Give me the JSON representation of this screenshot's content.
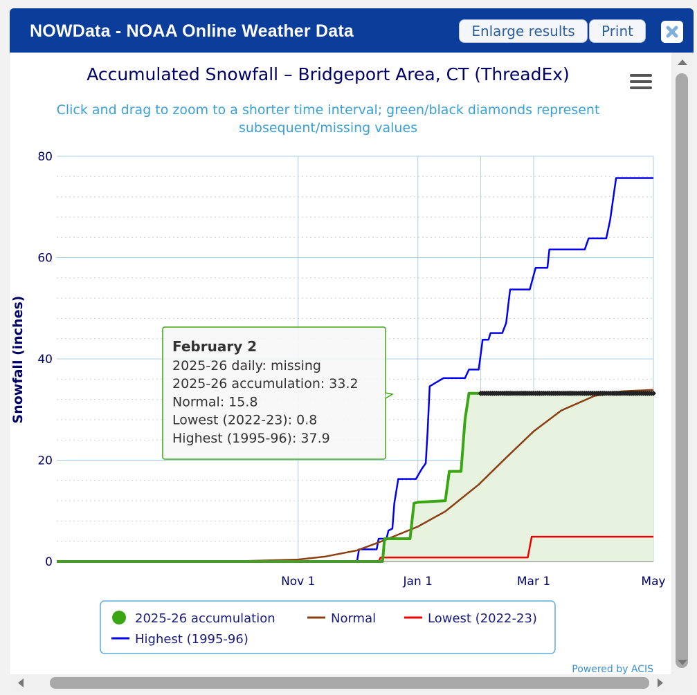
{
  "app": {
    "title": "NOWData - NOAA Online Weather Data",
    "enlarge_label": "Enlarge results",
    "print_label": "Print"
  },
  "chart_data": {
    "type": "line",
    "title": "Accumulated Snowfall – Bridgeport Area, CT (ThreadEx)",
    "subtitle": "Click and drag to zoom to a shorter time interval; green/black diamonds represent subsequent/missing values",
    "ylabel": "Snowfall (inches)",
    "xlabel": "",
    "ylim": [
      0,
      80
    ],
    "y_ticks": [
      0,
      20,
      40,
      60,
      80
    ],
    "x_axis": {
      "start": "2025-07-01",
      "end": "2026-05-01",
      "ticks": [
        {
          "date": "2025-11-01",
          "label": "Nov 1"
        },
        {
          "date": "2026-01-01",
          "label": "Jan 1"
        },
        {
          "date": "2026-03-01",
          "label": "Mar 1"
        },
        {
          "date": "2026-05-01",
          "label": "May"
        }
      ]
    },
    "grid": true,
    "legend_position": "bottom",
    "credit": "Powered by ACIS",
    "series": [
      {
        "name": "Highest (1995-96)",
        "color": "#0000ee",
        "points": [
          [
            "2025-07-01",
            0
          ],
          [
            "2025-12-01",
            0
          ],
          [
            "2025-12-02",
            2.4
          ],
          [
            "2025-12-11",
            2.4
          ],
          [
            "2025-12-12",
            4.5
          ],
          [
            "2025-12-16",
            4.5
          ],
          [
            "2025-12-17",
            6.1
          ],
          [
            "2025-12-19",
            6.5
          ],
          [
            "2025-12-20",
            11.5
          ],
          [
            "2025-12-22",
            16.3
          ],
          [
            "2025-12-31",
            16.3
          ],
          [
            "2026-01-03",
            18.3
          ],
          [
            "2026-01-05",
            19.4
          ],
          [
            "2026-01-06",
            26
          ],
          [
            "2026-01-07",
            34.6
          ],
          [
            "2026-01-14",
            36.2
          ],
          [
            "2026-01-25",
            36.2
          ],
          [
            "2026-01-27",
            37.9
          ],
          [
            "2026-02-01",
            37.9
          ],
          [
            "2026-02-03",
            43.8
          ],
          [
            "2026-02-06",
            43.8
          ],
          [
            "2026-02-07",
            45.1
          ],
          [
            "2026-02-13",
            45.1
          ],
          [
            "2026-02-15",
            47.1
          ],
          [
            "2026-02-16",
            50.5
          ],
          [
            "2026-02-17",
            53.7
          ],
          [
            "2026-02-27",
            53.7
          ],
          [
            "2026-03-02",
            58
          ],
          [
            "2026-03-08",
            58
          ],
          [
            "2026-03-09",
            61.6
          ],
          [
            "2026-03-27",
            61.6
          ],
          [
            "2026-03-29",
            63.8
          ],
          [
            "2026-04-07",
            63.8
          ],
          [
            "2026-04-09",
            67.5
          ],
          [
            "2026-04-12",
            75.7
          ],
          [
            "2026-05-01",
            75.7
          ]
        ]
      },
      {
        "name": "Lowest (2022-23)",
        "color": "#ee0000",
        "points": [
          [
            "2025-07-01",
            0
          ],
          [
            "2025-12-12",
            0
          ],
          [
            "2025-12-13",
            0.8
          ],
          [
            "2026-02-26",
            0.8
          ],
          [
            "2026-02-28",
            4.9
          ],
          [
            "2026-05-01",
            4.9
          ]
        ]
      },
      {
        "name": "Normal",
        "color": "#8b3e12",
        "points": [
          [
            "2025-07-01",
            0
          ],
          [
            "2025-10-01",
            0.05
          ],
          [
            "2025-10-15",
            0.2
          ],
          [
            "2025-11-01",
            0.4
          ],
          [
            "2025-11-15",
            1
          ],
          [
            "2025-12-01",
            2.2
          ],
          [
            "2025-12-15",
            4.2
          ],
          [
            "2026-01-01",
            6.9
          ],
          [
            "2026-01-15",
            9.9
          ],
          [
            "2026-02-01",
            15.2
          ],
          [
            "2026-02-15",
            20.5
          ],
          [
            "2026-03-01",
            25.7
          ],
          [
            "2026-03-15",
            29.8
          ],
          [
            "2026-04-01",
            32.7
          ],
          [
            "2026-04-15",
            33.6
          ],
          [
            "2026-05-01",
            33.9
          ]
        ]
      },
      {
        "name": "2025-26 accumulation",
        "color": "#3aa613",
        "points": [
          [
            "2025-07-01",
            0
          ],
          [
            "2025-12-14",
            0
          ],
          [
            "2025-12-15",
            4.5
          ],
          [
            "2025-12-28",
            4.5
          ],
          [
            "2025-12-30",
            11.5
          ],
          [
            "2026-01-01",
            11.7
          ],
          [
            "2026-01-15",
            12
          ],
          [
            "2026-01-17",
            17.8
          ],
          [
            "2026-01-23",
            17.8
          ],
          [
            "2026-01-25",
            28
          ],
          [
            "2026-01-27",
            33.2
          ],
          [
            "2026-02-02",
            33.2
          ]
        ]
      },
      {
        "name": "subsequent/missing values",
        "color": "#222222",
        "marker": "diamond",
        "value": 33.2,
        "from": "2026-02-02",
        "to": "2026-05-01"
      }
    ],
    "legend": [
      {
        "label": "2025-26 accumulation",
        "color": "#3aa613",
        "marker": "circle"
      },
      {
        "label": "Normal",
        "color": "#8b3e12",
        "marker": "line"
      },
      {
        "label": "Lowest (2022-23)",
        "color": "#ee0000",
        "marker": "line"
      },
      {
        "label": "Highest (1995-96)",
        "color": "#0000ee",
        "marker": "line"
      }
    ],
    "tooltip": {
      "date_label": "February 2",
      "lines": [
        "2025-26 daily: missing",
        "2025-26 accumulation: 33.2",
        "Normal: 15.8",
        "Lowest (2022-23): 0.8",
        "Highest (1995-96): 37.9"
      ]
    }
  }
}
